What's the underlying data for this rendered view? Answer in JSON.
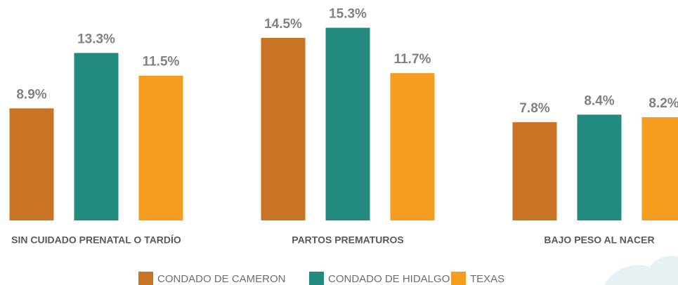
{
  "chart_data": {
    "type": "bar",
    "categories": [
      "SIN CUIDADO PRENATAL O TARDÍO",
      "PARTOS PREMATUROS",
      "BAJO PESO AL NACER"
    ],
    "series": [
      {
        "name": "CONDADO DE CAMERON",
        "color": "#c97425",
        "values": [
          8.9,
          14.5,
          7.8
        ],
        "value_labels": [
          "8.9%",
          "14.5%",
          "7.8%"
        ]
      },
      {
        "name": "CONDADO DE HIDALGO",
        "color": "#238a80",
        "values": [
          13.3,
          15.3,
          8.4
        ],
        "value_labels": [
          "13.3%",
          "15.3%",
          "8.4%"
        ]
      },
      {
        "name": "TEXAS",
        "color": "#f49d1f",
        "values": [
          11.5,
          11.7,
          8.2
        ],
        "value_labels": [
          "11.5%",
          "11.7%",
          "8.2%"
        ]
      }
    ],
    "ylim": [
      0,
      16
    ]
  }
}
